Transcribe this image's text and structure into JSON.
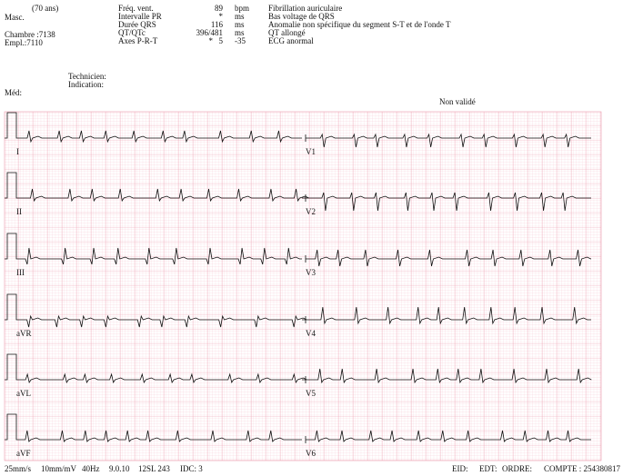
{
  "patient": {
    "age": "(70 ans)",
    "sex": "Masc.",
    "room": "Chambre :7138",
    "location": "Empl.:7110"
  },
  "measurements": {
    "rows": [
      [
        "Fréq. vent.",
        "89",
        "bpm"
      ],
      [
        "Intervalle PR",
        "*",
        "ms"
      ],
      [
        "Durée QRS",
        "116",
        "ms"
      ],
      [
        "QT/QTc",
        "396/481",
        "ms"
      ],
      [
        "Axes P-R-T",
        "*",
        "5",
        "-35"
      ]
    ]
  },
  "interpretation": [
    "Fibrillation auriculaire",
    "Bas voltage de QRS",
    "Anomalie non spécifique du segment S-T et de l'onde T",
    "QT allongé",
    "ECG anormal"
  ],
  "technician": "Technicien:",
  "indication": "Indication:",
  "physician": "Méd:",
  "status": "Non validé",
  "leads": {
    "left": [
      "I",
      "II",
      "III",
      "aVR",
      "aVL",
      "aVF"
    ],
    "right": [
      "V1",
      "V2",
      "V3",
      "V4",
      "V5",
      "V6"
    ]
  },
  "footer": {
    "left": [
      "25mm/s",
      "10mm/mV",
      "40Hz",
      "9.0.10",
      "12SL 243",
      "IDC: 3"
    ],
    "right": [
      "EID:",
      "EDT:",
      "ORDRE:",
      "COMPTE : 254380817"
    ]
  }
}
